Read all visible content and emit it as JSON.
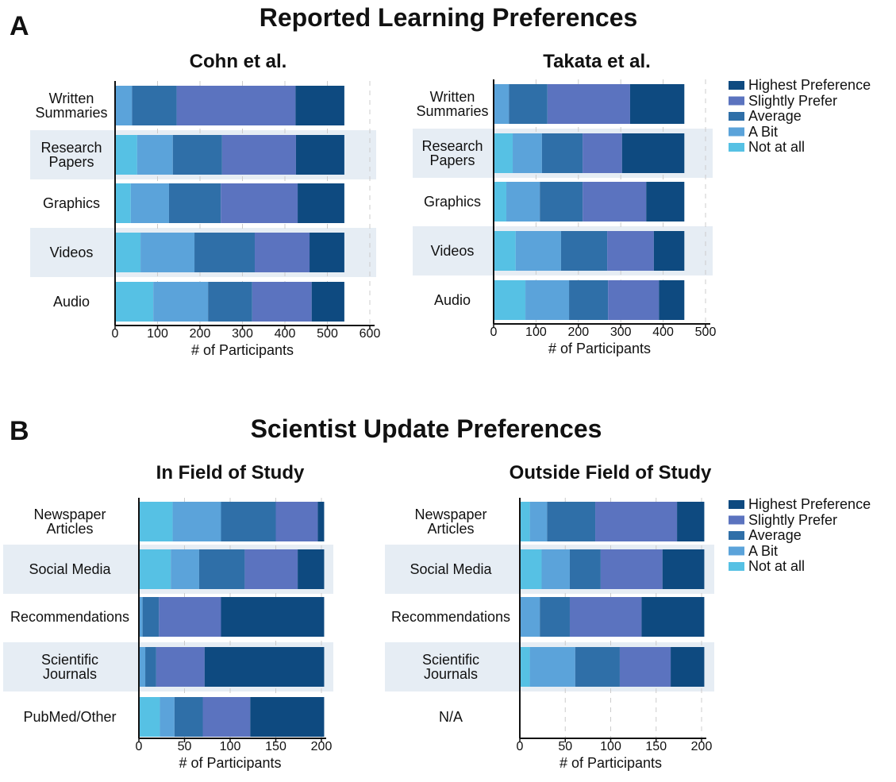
{
  "panels": [
    {
      "label": "A",
      "title": "Reported Learning Preferences"
    },
    {
      "label": "B",
      "title": "Scientist Update Preferences"
    }
  ],
  "chart_data": [
    {
      "type": "bar",
      "orientation": "horizontal",
      "stacked": true,
      "title": "Cohn et al.",
      "categories": [
        "Written\nSummaries",
        "Research\nPapers",
        "Graphics",
        "Videos",
        "Audio"
      ],
      "series": [
        {
          "color": "#56c1e4",
          "values": [
            0,
            52,
            37,
            60,
            90
          ]
        },
        {
          "color": "#5ba3da",
          "values": [
            40,
            84,
            90,
            127,
            129
          ]
        },
        {
          "color": "#2f6fa8",
          "values": [
            105,
            116,
            122,
            142,
            104
          ]
        },
        {
          "color": "#5b73bf",
          "values": [
            280,
            174,
            181,
            129,
            140
          ]
        },
        {
          "color": "#0e4a80",
          "values": [
            115,
            114,
            110,
            82,
            77
          ]
        }
      ],
      "xlim": [
        0,
        600
      ],
      "xticks": [
        0,
        100,
        200,
        300,
        400,
        500,
        600
      ],
      "xlabel": "# of Participants",
      "grid": true
    },
    {
      "type": "bar",
      "orientation": "horizontal",
      "stacked": true,
      "title": "Takata et al.",
      "categories": [
        "Written\nSummaries",
        "Research\nPapers",
        "Graphics",
        "Videos",
        "Audio"
      ],
      "series": [
        {
          "name": "Not at all",
          "color": "#56c1e4",
          "values": [
            0,
            45,
            30,
            52,
            75
          ]
        },
        {
          "name": "A Bit",
          "color": "#5ba3da",
          "values": [
            36,
            69,
            79,
            107,
            103
          ]
        },
        {
          "name": "Average",
          "color": "#2f6fa8",
          "values": [
            91,
            96,
            101,
            109,
            92
          ]
        },
        {
          "name": "Slightly Prefer",
          "color": "#5b73bf",
          "values": [
            195,
            93,
            150,
            110,
            120
          ]
        },
        {
          "name": "Highest Preference",
          "color": "#0e4a80",
          "values": [
            128,
            147,
            90,
            72,
            60
          ]
        }
      ],
      "xlim": [
        0,
        500
      ],
      "xticks": [
        0,
        100,
        200,
        300,
        400,
        500
      ],
      "xlabel": "# of Participants",
      "grid": true,
      "legend": "right"
    },
    {
      "type": "bar",
      "orientation": "horizontal",
      "stacked": true,
      "title": "In Field of Study",
      "categories": [
        "Newspaper\nArticles",
        "Social Media",
        "Recommendations",
        "Scientific\nJournals",
        "PubMed/Other"
      ],
      "series": [
        {
          "color": "#56c1e4",
          "values": [
            37,
            35,
            0,
            0,
            23
          ]
        },
        {
          "color": "#5ba3da",
          "values": [
            53,
            31,
            4,
            7,
            16
          ]
        },
        {
          "color": "#2f6fa8",
          "values": [
            60,
            50,
            18,
            12,
            31
          ]
        },
        {
          "color": "#5b73bf",
          "values": [
            46,
            58,
            68,
            53,
            52
          ]
        },
        {
          "color": "#0e4a80",
          "values": [
            7,
            29,
            113,
            131,
            81
          ]
        }
      ],
      "xlim": [
        0,
        200
      ],
      "xticks": [
        0,
        50,
        100,
        150,
        200
      ],
      "xlabel": "# of Participants",
      "grid": true
    },
    {
      "type": "bar",
      "orientation": "horizontal",
      "stacked": true,
      "title": "Outside Field of Study",
      "categories": [
        "Newspaper\nArticles",
        "Social Media",
        "Recommendations",
        "Scientific\nJournals",
        "N/A"
      ],
      "series": [
        {
          "name": "Not at all",
          "color": "#56c1e4",
          "values": [
            11,
            24,
            0,
            11,
            null
          ]
        },
        {
          "name": "A Bit",
          "color": "#5ba3da",
          "values": [
            19,
            31,
            22,
            50,
            null
          ]
        },
        {
          "name": "Average",
          "color": "#2f6fa8",
          "values": [
            53,
            34,
            33,
            49,
            null
          ]
        },
        {
          "name": "Slightly Prefer",
          "color": "#5b73bf",
          "values": [
            90,
            68,
            79,
            56,
            null
          ]
        },
        {
          "name": "Highest Preference",
          "color": "#0e4a80",
          "values": [
            30,
            46,
            69,
            37,
            null
          ]
        }
      ],
      "xlim": [
        0,
        200
      ],
      "xticks": [
        0,
        50,
        100,
        150,
        200
      ],
      "xlabel": "# of Participants",
      "grid": true,
      "legend": "right"
    }
  ]
}
